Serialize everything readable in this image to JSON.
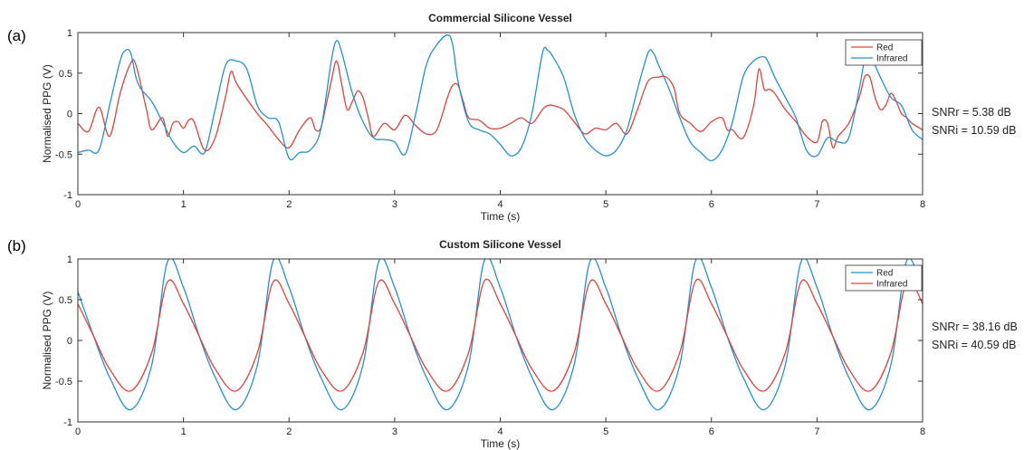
{
  "chart_data": [
    {
      "type": "line",
      "panel_label": "(a)",
      "title": "Commercial Silicone Vessel",
      "xlabel": "Time (s)",
      "ylabel": "Normalised PPG (V)",
      "xlim": [
        0,
        8
      ],
      "ylim": [
        -1,
        1
      ],
      "xticks": [
        0,
        1,
        2,
        3,
        4,
        5,
        6,
        7,
        8
      ],
      "yticks": [
        -1,
        -0.5,
        0,
        0.5,
        1
      ],
      "grid": false,
      "legend_position": "top-right",
      "series": [
        {
          "name": "Red",
          "color": "#e8403a",
          "x": [
            0,
            0.1,
            0.2,
            0.3,
            0.4,
            0.5,
            0.55,
            0.65,
            0.7,
            0.8,
            0.85,
            0.9,
            0.95,
            1.0,
            1.05,
            1.1,
            1.2,
            1.3,
            1.4,
            1.45,
            1.5,
            1.6,
            1.7,
            1.8,
            1.9,
            2.0,
            2.1,
            2.2,
            2.25,
            2.3,
            2.35,
            2.4,
            2.45,
            2.5,
            2.55,
            2.6,
            2.65,
            2.7,
            2.75,
            2.8,
            2.9,
            3.0,
            3.1,
            3.2,
            3.3,
            3.4,
            3.5,
            3.55,
            3.6,
            3.65,
            3.7,
            3.8,
            3.9,
            4.0,
            4.1,
            4.2,
            4.3,
            4.4,
            4.45,
            4.5,
            4.6,
            4.7,
            4.8,
            4.9,
            5.0,
            5.1,
            5.2,
            5.3,
            5.4,
            5.5,
            5.55,
            5.6,
            5.65,
            5.7,
            5.8,
            5.9,
            6.0,
            6.1,
            6.15,
            6.2,
            6.3,
            6.4,
            6.45,
            6.5,
            6.55,
            6.6,
            6.7,
            6.8,
            6.9,
            7.0,
            7.05,
            7.1,
            7.15,
            7.2,
            7.3,
            7.4,
            7.45,
            7.5,
            7.55,
            7.6,
            7.65,
            7.7,
            7.75,
            7.8,
            7.85,
            7.9,
            8.0
          ],
          "y": [
            -0.12,
            -0.22,
            0.08,
            -0.28,
            0.25,
            0.62,
            0.6,
            0.05,
            -0.2,
            -0.05,
            -0.28,
            -0.12,
            -0.1,
            -0.18,
            -0.08,
            -0.1,
            -0.45,
            -0.3,
            0.22,
            0.52,
            0.38,
            0.18,
            0.0,
            -0.15,
            -0.32,
            -0.42,
            -0.2,
            -0.05,
            -0.2,
            -0.18,
            0.1,
            0.4,
            0.65,
            0.35,
            0.05,
            0.15,
            0.28,
            0.2,
            -0.05,
            -0.28,
            -0.12,
            -0.2,
            -0.02,
            -0.15,
            -0.25,
            -0.2,
            0.2,
            0.35,
            0.35,
            0.15,
            -0.05,
            -0.08,
            -0.18,
            -0.18,
            -0.12,
            -0.05,
            -0.12,
            0.05,
            0.1,
            0.1,
            0.05,
            -0.1,
            -0.25,
            -0.18,
            -0.2,
            -0.12,
            -0.25,
            0.05,
            0.4,
            0.45,
            0.46,
            0.42,
            0.3,
            0.0,
            -0.12,
            -0.22,
            -0.1,
            -0.05,
            -0.2,
            -0.2,
            -0.3,
            0.1,
            0.55,
            0.3,
            0.3,
            0.25,
            0.05,
            -0.1,
            -0.28,
            -0.35,
            -0.1,
            -0.12,
            -0.42,
            -0.28,
            -0.12,
            0.2,
            0.45,
            0.45,
            0.2,
            0.05,
            0.1,
            0.25,
            0.15,
            0.0,
            -0.05,
            -0.12,
            -0.2
          ]
        },
        {
          "name": "Infrared",
          "color": "#1f93cf",
          "x": [
            0,
            0.1,
            0.2,
            0.3,
            0.4,
            0.45,
            0.5,
            0.55,
            0.6,
            0.7,
            0.8,
            0.9,
            1.0,
            1.1,
            1.2,
            1.3,
            1.4,
            1.5,
            1.6,
            1.7,
            1.8,
            1.9,
            2.0,
            2.1,
            2.2,
            2.3,
            2.4,
            2.45,
            2.5,
            2.6,
            2.7,
            2.8,
            2.9,
            3.0,
            3.1,
            3.2,
            3.3,
            3.4,
            3.5,
            3.55,
            3.6,
            3.7,
            3.8,
            3.9,
            4.0,
            4.1,
            4.2,
            4.3,
            4.4,
            4.45,
            4.5,
            4.6,
            4.7,
            4.8,
            4.9,
            5.0,
            5.1,
            5.2,
            5.3,
            5.4,
            5.45,
            5.5,
            5.6,
            5.7,
            5.8,
            5.9,
            6.0,
            6.1,
            6.2,
            6.3,
            6.4,
            6.5,
            6.55,
            6.6,
            6.7,
            6.8,
            6.9,
            7.0,
            7.1,
            7.2,
            7.3,
            7.4,
            7.45,
            7.5,
            7.6,
            7.7,
            7.8,
            7.9,
            8.0
          ],
          "y": [
            -0.48,
            -0.45,
            -0.45,
            0.1,
            0.65,
            0.78,
            0.75,
            0.45,
            0.3,
            0.15,
            -0.1,
            -0.35,
            -0.48,
            -0.4,
            -0.48,
            0.05,
            0.6,
            0.65,
            0.55,
            0.1,
            -0.05,
            -0.1,
            -0.55,
            -0.48,
            -0.45,
            -0.2,
            0.65,
            0.9,
            0.75,
            0.25,
            -0.1,
            -0.3,
            -0.32,
            -0.35,
            -0.5,
            0.0,
            0.6,
            0.85,
            0.97,
            0.85,
            0.4,
            -0.1,
            -0.2,
            -0.25,
            -0.38,
            -0.52,
            -0.42,
            0.0,
            0.75,
            0.78,
            0.7,
            0.45,
            0.0,
            -0.3,
            -0.45,
            -0.52,
            -0.45,
            -0.2,
            0.3,
            0.75,
            0.75,
            0.6,
            0.3,
            -0.05,
            -0.35,
            -0.48,
            -0.58,
            -0.45,
            -0.1,
            0.45,
            0.65,
            0.7,
            0.6,
            0.45,
            0.2,
            -0.05,
            -0.45,
            -0.52,
            -0.3,
            -0.35,
            -0.3,
            0.3,
            0.65,
            0.72,
            0.45,
            0.2,
            0.1,
            -0.2,
            -0.32
          ]
        }
      ],
      "annotations": [
        "SNRr = 5.38 dB",
        "SNRi = 10.59 dB"
      ]
    },
    {
      "type": "line",
      "panel_label": "(b)",
      "title": "Custom Silicone Vessel",
      "xlabel": "Time (s)",
      "ylabel": "Normalised PPG (V)",
      "xlim": [
        0,
        8
      ],
      "ylim": [
        -1,
        1
      ],
      "xticks": [
        0,
        1,
        2,
        3,
        4,
        5,
        6,
        7,
        8
      ],
      "yticks": [
        -1,
        -0.5,
        0,
        0.5,
        1
      ],
      "grid": false,
      "legend_position": "top-right",
      "series": [
        {
          "name": "Red",
          "color": "#1f93cf",
          "x": [
            0,
            0.15,
            0.3,
            0.5,
            0.7,
            0.85,
            1.0,
            1.15,
            1.3,
            1.5,
            1.7,
            1.85,
            2.0,
            2.15,
            2.3,
            2.5,
            2.7,
            2.85,
            3.0,
            3.15,
            3.3,
            3.5,
            3.7,
            3.85,
            4.0,
            4.15,
            4.3,
            4.5,
            4.7,
            4.85,
            5.0,
            5.15,
            5.3,
            5.5,
            5.7,
            5.85,
            6.0,
            6.15,
            6.3,
            6.5,
            6.7,
            6.85,
            7.0,
            7.15,
            7.3,
            7.5,
            7.7,
            7.85,
            8.0
          ],
          "y": [
            0.6,
            0.05,
            -0.45,
            -0.85,
            -0.3,
            0.97,
            0.65,
            0.05,
            -0.45,
            -0.85,
            -0.3,
            0.98,
            0.65,
            0.05,
            -0.45,
            -0.85,
            -0.3,
            0.97,
            0.65,
            0.05,
            -0.45,
            -0.85,
            -0.3,
            0.98,
            0.65,
            0.05,
            -0.45,
            -0.85,
            -0.3,
            0.97,
            0.65,
            0.05,
            -0.45,
            -0.85,
            -0.3,
            0.98,
            0.65,
            0.05,
            -0.45,
            -0.85,
            -0.3,
            0.97,
            0.65,
            0.05,
            -0.45,
            -0.85,
            -0.3,
            0.98,
            0.6
          ]
        },
        {
          "name": "Infrared",
          "color": "#e8403a",
          "x": [
            0,
            0.15,
            0.3,
            0.5,
            0.7,
            0.85,
            1.0,
            1.15,
            1.3,
            1.5,
            1.7,
            1.85,
            2.0,
            2.15,
            2.3,
            2.5,
            2.7,
            2.85,
            3.0,
            3.15,
            3.3,
            3.5,
            3.7,
            3.85,
            4.0,
            4.15,
            4.3,
            4.5,
            4.7,
            4.85,
            5.0,
            5.15,
            5.3,
            5.5,
            5.7,
            5.85,
            6.0,
            6.15,
            6.3,
            6.5,
            6.7,
            6.85,
            7.0,
            7.15,
            7.3,
            7.5,
            7.7,
            7.85,
            8.0
          ],
          "y": [
            0.45,
            0.05,
            -0.35,
            -0.62,
            -0.15,
            0.72,
            0.45,
            0.05,
            -0.35,
            -0.62,
            -0.15,
            0.72,
            0.45,
            0.05,
            -0.35,
            -0.62,
            -0.15,
            0.72,
            0.45,
            0.05,
            -0.35,
            -0.62,
            -0.15,
            0.73,
            0.45,
            0.05,
            -0.35,
            -0.62,
            -0.15,
            0.72,
            0.45,
            0.05,
            -0.35,
            -0.62,
            -0.15,
            0.73,
            0.45,
            0.05,
            -0.35,
            -0.62,
            -0.15,
            0.72,
            0.45,
            0.05,
            -0.35,
            -0.62,
            -0.15,
            0.72,
            0.45
          ]
        }
      ],
      "annotations": [
        "SNRr = 38.16 dB",
        "SNRi = 40.59 dB"
      ]
    }
  ]
}
